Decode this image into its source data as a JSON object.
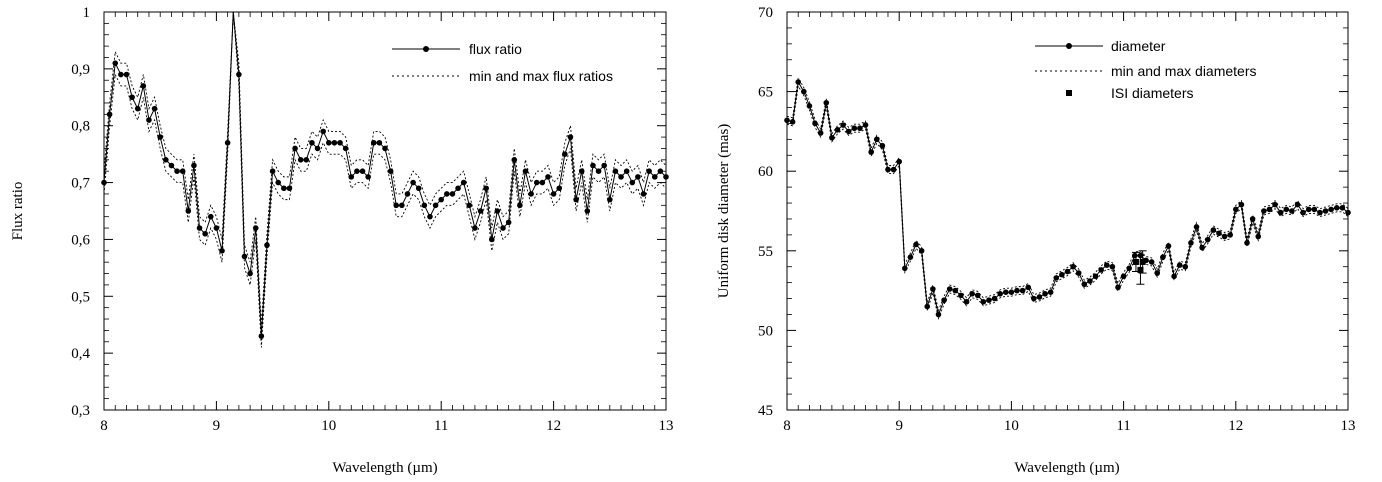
{
  "chart_data": [
    {
      "type": "line",
      "xlabel": "Wavelength (µm)",
      "ylabel": "Flux ratio",
      "xlim": [
        8,
        13
      ],
      "ylim": [
        0.3,
        1.0
      ],
      "x_ticks": [
        8,
        9,
        10,
        11,
        12,
        13
      ],
      "x_tick_labels": [
        "8",
        "9",
        "10",
        "11",
        "12",
        "13"
      ],
      "y_ticks": [
        0.3,
        0.4,
        0.5,
        0.6,
        0.7,
        0.8,
        0.9,
        1.0
      ],
      "y_tick_labels": [
        "0,3",
        "0,4",
        "0,5",
        "0,6",
        "0,7",
        "0,8",
        "0,9",
        "1"
      ],
      "grid": false,
      "legend_position": "top-right",
      "legend": [
        "flux ratio",
        "min and max flux ratios"
      ],
      "band": 0.02,
      "x": [
        8.0,
        8.05,
        8.1,
        8.15,
        8.2,
        8.25,
        8.3,
        8.35,
        8.4,
        8.45,
        8.5,
        8.55,
        8.6,
        8.65,
        8.7,
        8.75,
        8.8,
        8.85,
        8.9,
        8.95,
        9.0,
        9.05,
        9.1,
        9.15,
        9.2,
        9.25,
        9.3,
        9.35,
        9.4,
        9.45,
        9.5,
        9.55,
        9.6,
        9.65,
        9.7,
        9.75,
        9.8,
        9.85,
        9.9,
        9.95,
        10.0,
        10.05,
        10.1,
        10.15,
        10.2,
        10.25,
        10.3,
        10.35,
        10.4,
        10.45,
        10.5,
        10.55,
        10.6,
        10.65,
        10.7,
        10.75,
        10.8,
        10.85,
        10.9,
        10.95,
        11.0,
        11.05,
        11.1,
        11.15,
        11.2,
        11.25,
        11.3,
        11.35,
        11.4,
        11.45,
        11.5,
        11.55,
        11.6,
        11.65,
        11.7,
        11.75,
        11.8,
        11.85,
        11.9,
        11.95,
        12.0,
        12.05,
        12.1,
        12.15,
        12.2,
        12.25,
        12.3,
        12.35,
        12.4,
        12.45,
        12.5,
        12.55,
        12.6,
        12.65,
        12.7,
        12.75,
        12.8,
        12.85,
        12.9,
        12.95,
        13.0
      ],
      "values": [
        0.7,
        0.82,
        0.91,
        0.89,
        0.89,
        0.85,
        0.83,
        0.87,
        0.81,
        0.83,
        0.78,
        0.74,
        0.73,
        0.72,
        0.72,
        0.65,
        0.73,
        0.62,
        0.61,
        0.64,
        0.62,
        0.58,
        0.77,
        1.05,
        0.89,
        0.57,
        0.54,
        0.62,
        0.43,
        0.59,
        0.72,
        0.7,
        0.69,
        0.69,
        0.76,
        0.74,
        0.74,
        0.77,
        0.76,
        0.79,
        0.77,
        0.77,
        0.77,
        0.76,
        0.71,
        0.72,
        0.72,
        0.71,
        0.77,
        0.77,
        0.76,
        0.72,
        0.66,
        0.66,
        0.68,
        0.7,
        0.69,
        0.66,
        0.64,
        0.66,
        0.67,
        0.68,
        0.68,
        0.69,
        0.7,
        0.66,
        0.62,
        0.65,
        0.69,
        0.6,
        0.65,
        0.62,
        0.63,
        0.74,
        0.66,
        0.72,
        0.68,
        0.7,
        0.7,
        0.71,
        0.68,
        0.69,
        0.75,
        0.78,
        0.67,
        0.72,
        0.65,
        0.73,
        0.72,
        0.73,
        0.67,
        0.72,
        0.71,
        0.72,
        0.7,
        0.71,
        0.68,
        0.72,
        0.71,
        0.72,
        0.71
      ]
    },
    {
      "type": "line",
      "xlabel": "Wavelength (µm)",
      "ylabel": "Uniform disk diameter (mas)",
      "xlim": [
        8,
        13
      ],
      "ylim": [
        45,
        70
      ],
      "x_ticks": [
        8,
        9,
        10,
        11,
        12,
        13
      ],
      "x_tick_labels": [
        "8",
        "9",
        "10",
        "11",
        "12",
        "13"
      ],
      "y_ticks": [
        45,
        50,
        55,
        60,
        65,
        70
      ],
      "y_tick_labels": [
        "45",
        "50",
        "55",
        "60",
        "65",
        "70"
      ],
      "grid": false,
      "legend_position": "top-right",
      "legend": [
        "diameter",
        "min and max diameters",
        "ISI diameters"
      ],
      "band": 0.25,
      "x": [
        8.0,
        8.05,
        8.1,
        8.15,
        8.2,
        8.25,
        8.3,
        8.35,
        8.4,
        8.45,
        8.5,
        8.55,
        8.6,
        8.65,
        8.7,
        8.75,
        8.8,
        8.85,
        8.9,
        8.95,
        9.0,
        9.05,
        9.1,
        9.15,
        9.2,
        9.25,
        9.3,
        9.35,
        9.4,
        9.45,
        9.5,
        9.55,
        9.6,
        9.65,
        9.7,
        9.75,
        9.8,
        9.85,
        9.9,
        9.95,
        10.0,
        10.05,
        10.1,
        10.15,
        10.2,
        10.25,
        10.3,
        10.35,
        10.4,
        10.45,
        10.5,
        10.55,
        10.6,
        10.65,
        10.7,
        10.75,
        10.8,
        10.85,
        10.9,
        10.95,
        11.0,
        11.05,
        11.1,
        11.15,
        11.2,
        11.25,
        11.3,
        11.35,
        11.4,
        11.45,
        11.5,
        11.55,
        11.6,
        11.65,
        11.7,
        11.75,
        11.8,
        11.85,
        11.9,
        11.95,
        12.0,
        12.05,
        12.1,
        12.15,
        12.2,
        12.25,
        12.3,
        12.35,
        12.4,
        12.45,
        12.5,
        12.55,
        12.6,
        12.65,
        12.7,
        12.75,
        12.8,
        12.85,
        12.9,
        12.95,
        13.0
      ],
      "values": [
        63.2,
        63.1,
        65.6,
        65.0,
        64.1,
        63.0,
        62.4,
        64.3,
        62.1,
        62.6,
        62.9,
        62.5,
        62.7,
        62.7,
        62.9,
        61.2,
        62.0,
        61.6,
        60.1,
        60.1,
        60.6,
        53.9,
        54.6,
        55.4,
        55.0,
        51.5,
        52.6,
        51.0,
        51.9,
        52.6,
        52.5,
        52.2,
        51.8,
        52.3,
        52.2,
        51.8,
        51.9,
        52.0,
        52.3,
        52.4,
        52.4,
        52.5,
        52.5,
        52.7,
        52.0,
        52.1,
        52.3,
        52.4,
        53.3,
        53.5,
        53.7,
        54.0,
        53.6,
        52.9,
        53.1,
        53.4,
        53.8,
        54.1,
        54.0,
        52.7,
        53.4,
        53.9,
        54.7,
        54.7,
        54.4,
        54.3,
        53.6,
        54.6,
        55.3,
        53.4,
        54.1,
        54.0,
        55.5,
        56.5,
        55.2,
        55.7,
        56.3,
        56.1,
        55.9,
        56.0,
        57.6,
        57.9,
        55.5,
        57.0,
        55.9,
        57.5,
        57.6,
        57.9,
        57.4,
        57.6,
        57.5,
        57.9,
        57.4,
        57.6,
        57.6,
        57.4,
        57.5,
        57.6,
        57.7,
        57.7,
        57.4
      ],
      "isi_diameters": [
        {
          "x": 11.11,
          "y": 54.3,
          "err": 0.6
        },
        {
          "x": 11.15,
          "y": 53.8,
          "err": 0.9
        },
        {
          "x": 11.17,
          "y": 54.3,
          "err": 0.7
        }
      ]
    }
  ]
}
